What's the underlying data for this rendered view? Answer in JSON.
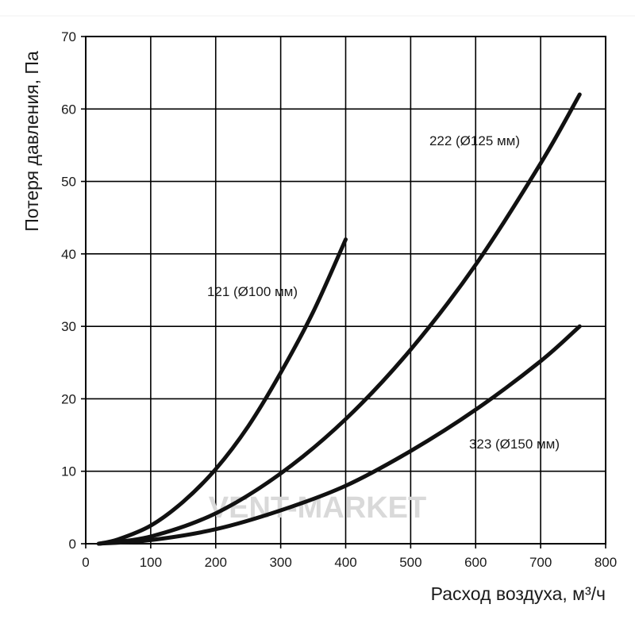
{
  "chart_data": {
    "type": "line",
    "xlabel": "Расход воздуха, м³/ч",
    "ylabel": "Потеря давления, Па",
    "xlim": [
      0,
      800
    ],
    "ylim": [
      0,
      70
    ],
    "x_ticks": [
      "0",
      "100",
      "200",
      "300",
      "400",
      "500",
      "600",
      "700",
      "800"
    ],
    "y_ticks": [
      "0",
      "10",
      "20",
      "30",
      "40",
      "50",
      "60",
      "70"
    ],
    "grid": true,
    "series": [
      {
        "name": "121 (Ø100 мм)",
        "x": [
          20,
          50,
          100,
          150,
          200,
          250,
          300,
          350,
          400
        ],
        "y": [
          0,
          0.6,
          2.5,
          5.8,
          10.3,
          16.2,
          23.6,
          32,
          42
        ]
      },
      {
        "name": "222 (Ø125 мм)",
        "x": [
          20,
          100,
          200,
          300,
          400,
          500,
          600,
          700,
          760
        ],
        "y": [
          0,
          1,
          4.2,
          9.7,
          17.2,
          26.8,
          38.5,
          52.5,
          62
        ]
      },
      {
        "name": "323 (Ø150 мм)",
        "x": [
          20,
          100,
          200,
          300,
          400,
          500,
          600,
          700,
          760
        ],
        "y": [
          0,
          0.5,
          2,
          4.6,
          8,
          12.8,
          18.5,
          25.2,
          30
        ]
      }
    ]
  },
  "watermark": "VENT-MARKET"
}
